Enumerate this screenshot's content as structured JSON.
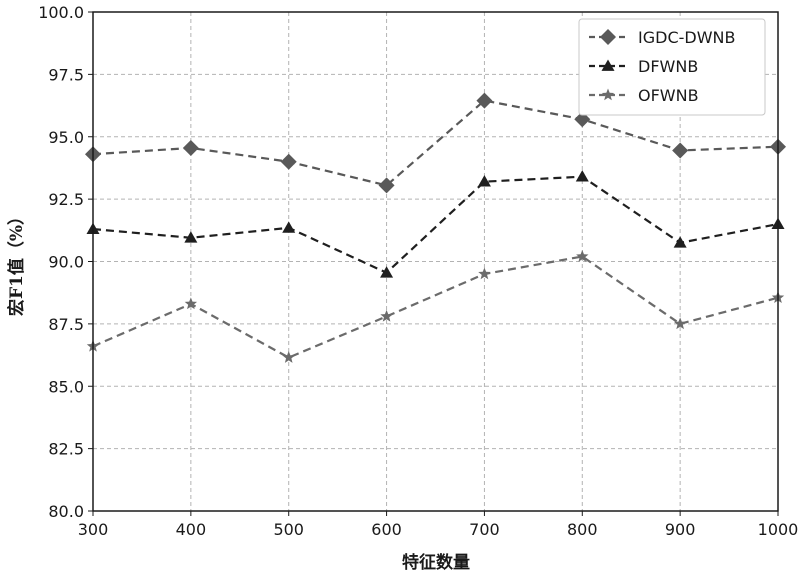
{
  "chart_data": {
    "type": "line",
    "title": "",
    "xlabel": "特征数量",
    "ylabel": "宏F1值（%）",
    "x": [
      300,
      400,
      500,
      600,
      700,
      800,
      900,
      1000
    ],
    "xticks": [
      "300",
      "400",
      "500",
      "600",
      "700",
      "800",
      "900",
      "1000"
    ],
    "yticks": [
      "80.0",
      "82.5",
      "85.0",
      "87.5",
      "90.0",
      "92.5",
      "95.0",
      "97.5",
      "100.0"
    ],
    "xlim": [
      300,
      1000
    ],
    "ylim": [
      80.0,
      100.0
    ],
    "grid": true,
    "legend_position": "top-right",
    "series": [
      {
        "name": "IGDC-DWNB",
        "marker": "diamond",
        "color": "#595959",
        "values": [
          94.3,
          94.55,
          94.0,
          93.05,
          96.45,
          95.7,
          94.45,
          94.6
        ]
      },
      {
        "name": "DFWNB",
        "marker": "triangle",
        "color": "#1f1f1f",
        "values": [
          91.3,
          90.95,
          91.35,
          89.55,
          93.2,
          93.4,
          90.75,
          91.5
        ]
      },
      {
        "name": "OFWNB",
        "marker": "star",
        "color": "#6b6b6b",
        "values": [
          86.6,
          88.3,
          86.15,
          87.8,
          89.5,
          90.2,
          87.5,
          88.55
        ]
      }
    ]
  }
}
